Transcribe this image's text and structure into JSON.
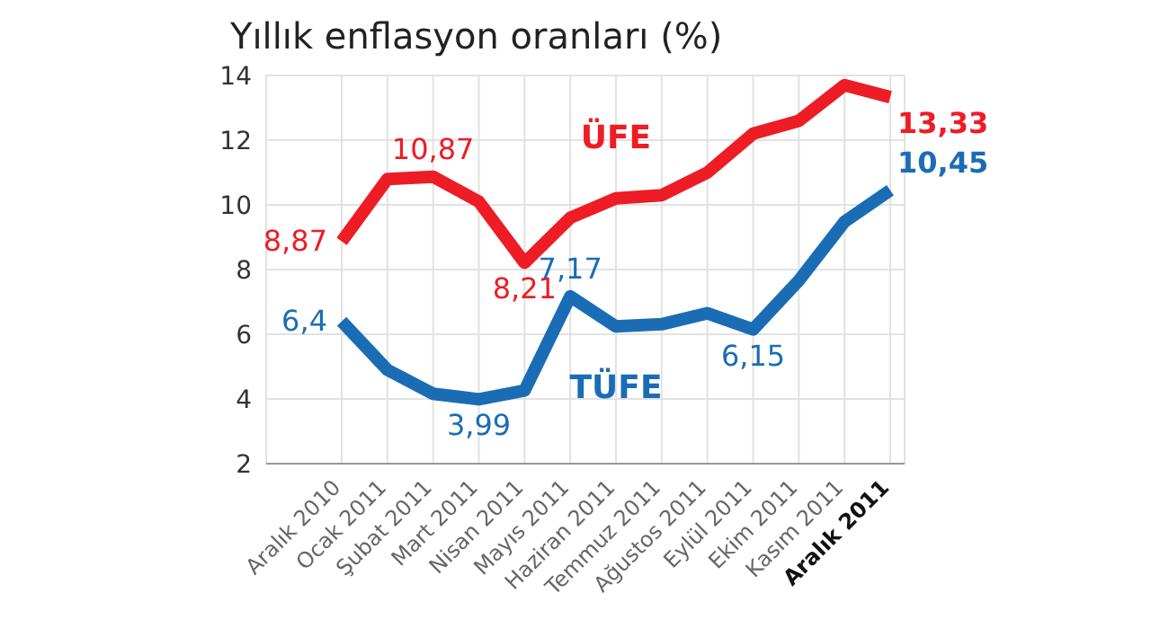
{
  "chart_data": {
    "type": "line",
    "title": "Yıllık enflasyon oranları (%)",
    "categories": [
      "Aralık 2010",
      "Ocak 2011",
      "Şubat 2011",
      "Mart 2011",
      "Nisan 2011",
      "Mayıs 2011",
      "Haziran 2011",
      "Temmuz 2011",
      "Ağustos 2011",
      "Eylül 2011",
      "Ekim 2011",
      "Kasım 2011",
      "Aralık 2011"
    ],
    "series": [
      {
        "name": "ÜFE",
        "color": "#ee1c25",
        "values": [
          8.87,
          10.8,
          10.87,
          10.1,
          8.21,
          9.6,
          10.2,
          10.3,
          11.0,
          12.2,
          12.6,
          13.7,
          13.33
        ],
        "value_labels": [
          "8,87",
          null,
          "10,87",
          null,
          "8,21",
          null,
          null,
          null,
          null,
          null,
          null,
          null,
          "13,33"
        ]
      },
      {
        "name": "TÜFE",
        "color": "#1a6db5",
        "values": [
          6.4,
          4.9,
          4.16,
          3.99,
          4.26,
          7.17,
          6.24,
          6.31,
          6.65,
          6.15,
          7.66,
          9.48,
          10.45
        ],
        "value_labels": [
          "6,4",
          null,
          null,
          "3,99",
          null,
          "7,17",
          null,
          null,
          null,
          "6,15",
          null,
          null,
          "10,45"
        ]
      }
    ],
    "ylim": [
      2,
      14
    ],
    "yticks": [
      2,
      4,
      6,
      8,
      10,
      12,
      14
    ],
    "grid": true,
    "legend": false,
    "marker": "none",
    "line_style": "solid"
  }
}
